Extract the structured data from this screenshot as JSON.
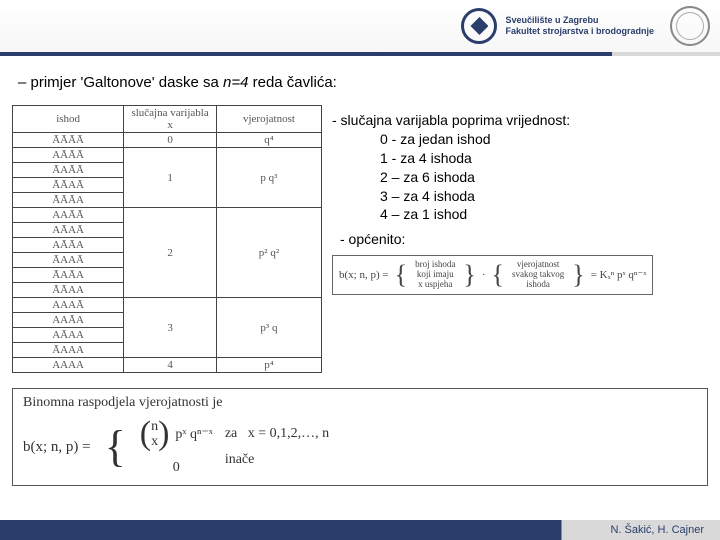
{
  "header": {
    "uni_line1": "Sveučilište u Zagrebu",
    "uni_line2": "Fakultet strojarstva i brodogradnje",
    "stripe_color": "#2a3d6b"
  },
  "title": {
    "prefix": "–  primjer 'Galtonove' daske sa ",
    "n_eq": "n=4",
    "suffix": " reda čavlića:"
  },
  "table": {
    "columns": [
      "ishod",
      "slučajna varijabla x",
      "vjerojatnost"
    ],
    "groups": [
      {
        "rows": [
          "ĀĀĀĀ"
        ],
        "x": "0",
        "p": "q⁴"
      },
      {
        "rows": [
          "AĀĀĀ",
          "ĀAĀĀ",
          "ĀĀAĀ",
          "ĀĀĀA"
        ],
        "x": "1",
        "p": "p q³"
      },
      {
        "rows": [
          "AAĀĀ",
          "AĀAĀ",
          "AĀĀA",
          "ĀAAĀ",
          "ĀAĀA",
          "ĀĀAA"
        ],
        "x": "2",
        "p": "p² q²"
      },
      {
        "rows": [
          "AAAĀ",
          "AAĀA",
          "AĀAA",
          "ĀAAA"
        ],
        "x": "3",
        "p": "p³ q"
      },
      {
        "rows": [
          "AAAA"
        ],
        "x": "4",
        "p": "p⁴"
      }
    ]
  },
  "bullets": {
    "heading": "- slučajna varijabla poprima vrijednost:",
    "items": [
      "0 - za jedan ishod",
      "1 - za 4 ishoda",
      "2 – za 6 ishoda",
      "3 – za 4 ishoda",
      "4 – za 1 ishod"
    ],
    "general": "- općenito:"
  },
  "general_formula": {
    "lhs": "b(x; n, p) =",
    "col1": [
      "broj ishoda",
      "koji imaju",
      "x uspjeha"
    ],
    "dot": "·",
    "col2": [
      "vjerojatnost",
      "svakog takvog",
      "ishoda"
    ],
    "rhs": "= Kₓⁿ pˣ qⁿ⁻ˣ"
  },
  "binom": {
    "title": "Binomna raspodjela vjerojatnosti je",
    "lhs": "b(x; n, p) =",
    "choose_top": "n",
    "choose_bot": "x",
    "term": "pˣ qⁿ⁻ˣ",
    "za": "za",
    "cond1": "x = 0,1,2,…, n",
    "zero": "0",
    "cond2": "inače"
  },
  "footer": {
    "authors": "N. Šakić, H. Cajner"
  }
}
